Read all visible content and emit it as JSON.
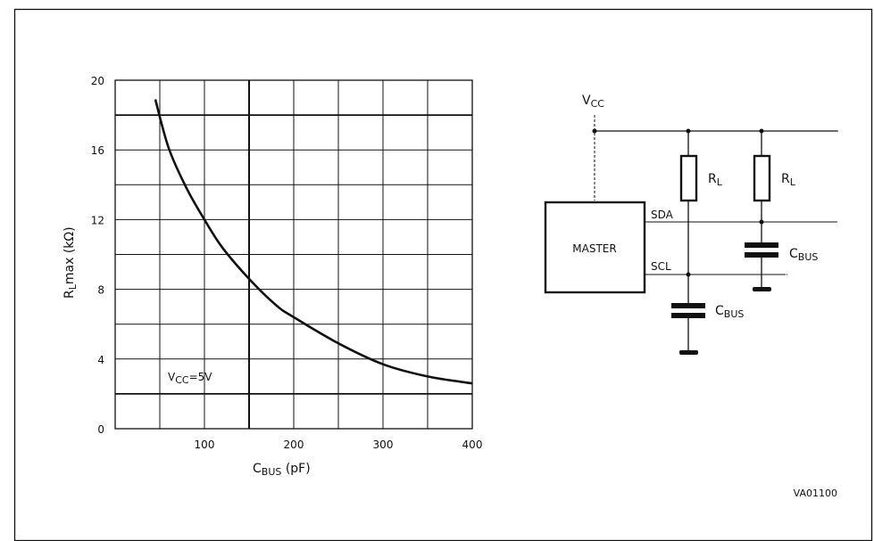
{
  "chart_data": {
    "type": "line",
    "title": "",
    "xlabel": {
      "main": "C",
      "sub": "BUS",
      "unit": " (pF)"
    },
    "ylabel": {
      "main": "R",
      "sub": "L",
      "rest": "max  (kΩ)"
    },
    "xlim": [
      0,
      400
    ],
    "ylim": [
      0,
      20
    ],
    "x_ticks": [
      "100",
      "200",
      "300",
      "400"
    ],
    "y_ticks": [
      "0",
      "4",
      "8",
      "12",
      "16",
      "20"
    ],
    "grid": true,
    "annotation": {
      "main": "V",
      "sub": "CC",
      "rest": "=5V"
    },
    "series": [
      {
        "x": [
          45,
          60,
          80,
          100,
          120,
          150,
          180,
          200,
          250,
          300,
          350,
          400
        ],
        "y": [
          18.9,
          16.1,
          13.8,
          12.0,
          10.4,
          8.6,
          7.1,
          6.4,
          4.9,
          3.7,
          3.0,
          2.6
        ]
      }
    ]
  },
  "circuit": {
    "vcc": {
      "main": "V",
      "sub": "CC"
    },
    "master_label": "MASTER",
    "sda_label": "SDA",
    "scl_label": "SCL",
    "rl_1": {
      "main": "R",
      "sub": "L"
    },
    "rl_2": {
      "main": "R",
      "sub": "L"
    },
    "cbus_1": {
      "main": "C",
      "sub": "BUS"
    },
    "cbus_2": {
      "main": "C",
      "sub": "BUS"
    }
  },
  "figure_code": "VA01100"
}
